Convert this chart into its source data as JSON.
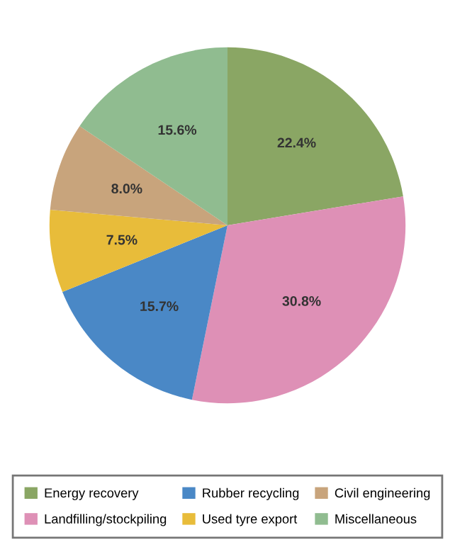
{
  "chart_data": {
    "type": "pie",
    "categories": [
      "Energy recovery",
      "Landfilling/stockpiling",
      "Rubber recycling",
      "Used tyre export",
      "Civil engineering",
      "Miscellaneous"
    ],
    "values": [
      22.4,
      30.8,
      15.7,
      7.5,
      8.0,
      15.6
    ],
    "value_labels": [
      "22.4%",
      "30.8%",
      "15.7%",
      "7.5%",
      "8.0%",
      "15.6%"
    ],
    "colors": [
      "#8aa664",
      "#de90b6",
      "#4a88c6",
      "#e8bc3a",
      "#c8a47c",
      "#90bc90"
    ],
    "legend": "bottom"
  }
}
